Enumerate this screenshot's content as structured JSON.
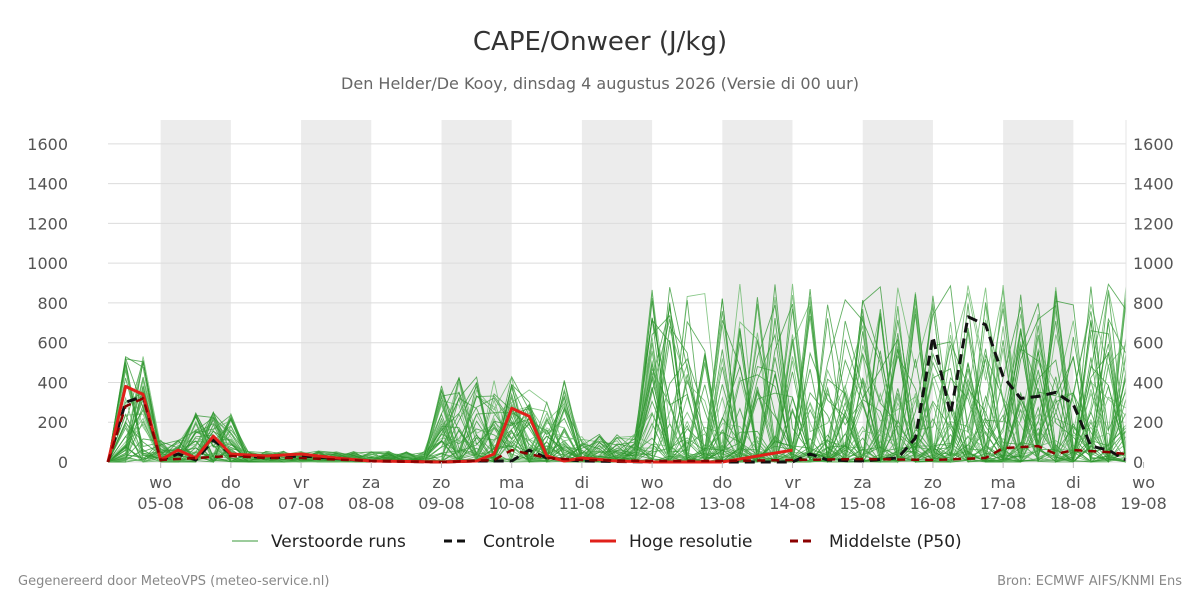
{
  "page": {
    "title": "CAPE/Onweer (J/kg)",
    "subtitle": "Den Helder/De Kooy, dinsdag  4 augustus 2026 (Versie di 00 uur)",
    "footer_left": "Gegenereerd door MeteoVPS (meteo-service.nl)",
    "footer_right": "Bron: ECMWF AIFS/KNMI Ens"
  },
  "chart_data": {
    "type": "line",
    "title": "CAPE/Onweer (J/kg)",
    "ylim": [
      0,
      1720
    ],
    "yticks": [
      0,
      200,
      400,
      600,
      800,
      1000,
      1200,
      1400,
      1600
    ],
    "xlim": [
      -0.75,
      13.75
    ],
    "x_unit": "days relative to 05-08 00:00",
    "xticks": [
      {
        "day": "wo",
        "date": "05-08"
      },
      {
        "day": "do",
        "date": "06-08"
      },
      {
        "day": "vr",
        "date": "07-08"
      },
      {
        "day": "za",
        "date": "08-08"
      },
      {
        "day": "zo",
        "date": "09-08"
      },
      {
        "day": "ma",
        "date": "10-08"
      },
      {
        "day": "di",
        "date": "11-08"
      },
      {
        "day": "wo",
        "date": "12-08"
      },
      {
        "day": "do",
        "date": "13-08"
      },
      {
        "day": "vr",
        "date": "14-08"
      },
      {
        "day": "za",
        "date": "15-08"
      },
      {
        "day": "zo",
        "date": "16-08"
      },
      {
        "day": "ma",
        "date": "17-08"
      },
      {
        "day": "di",
        "date": "18-08"
      },
      {
        "day": "wo",
        "date": "19-08"
      }
    ],
    "shaded_days": [
      0,
      2,
      4,
      6,
      8,
      10,
      12
    ],
    "grid": true,
    "legend": [
      {
        "label": "Verstoorde runs",
        "color": "#3a9a3a",
        "style": "thin"
      },
      {
        "label": "Controle",
        "color": "#111111",
        "style": "dashed"
      },
      {
        "label": "Hoge resolutie",
        "color": "#e0201a",
        "style": "solid"
      },
      {
        "label": "Middelste (P50)",
        "color": "#8b0000",
        "style": "dashed"
      }
    ],
    "series": [
      {
        "name": "Controle",
        "color": "#111111",
        "x": [
          -0.75,
          -0.5,
          -0.25,
          0,
          0.25,
          0.5,
          0.75,
          1,
          1.5,
          2,
          3,
          4,
          4.5,
          5,
          5.25,
          5.5,
          6,
          7,
          8,
          9,
          9.25,
          9.5,
          10,
          10.5,
          10.75,
          11,
          11.25,
          11.5,
          11.75,
          12,
          12.25,
          12.5,
          12.75,
          13,
          13.25,
          13.5,
          13.75
        ],
        "y": [
          0,
          300,
          330,
          10,
          40,
          10,
          110,
          40,
          20,
          30,
          5,
          0,
          5,
          5,
          60,
          20,
          5,
          0,
          0,
          0,
          40,
          10,
          5,
          20,
          120,
          630,
          240,
          730,
          690,
          430,
          320,
          330,
          350,
          290,
          80,
          60,
          10
        ]
      },
      {
        "name": "Hoge resolutie",
        "color": "#e0201a",
        "x": [
          -0.75,
          -0.5,
          -0.25,
          0,
          0.25,
          0.5,
          0.75,
          1,
          1.5,
          2,
          2.5,
          3,
          4,
          4.5,
          4.75,
          5,
          5.25,
          5.5,
          5.75,
          6,
          6.5,
          7,
          8,
          9
        ],
        "y": [
          0,
          380,
          340,
          10,
          60,
          20,
          130,
          40,
          30,
          40,
          20,
          5,
          0,
          5,
          40,
          270,
          230,
          30,
          5,
          20,
          5,
          0,
          0,
          60
        ]
      },
      {
        "name": "Middelste (P50)",
        "color": "#8b0000",
        "x": [
          -0.75,
          -0.5,
          -0.25,
          0,
          0.5,
          1,
          1.5,
          2,
          3,
          4,
          4.75,
          5,
          5.5,
          6,
          7,
          8,
          9,
          10,
          11,
          11.75,
          12,
          12.5,
          12.75,
          13,
          13.5,
          13.75
        ],
        "y": [
          0,
          280,
          320,
          10,
          20,
          30,
          20,
          20,
          5,
          0,
          10,
          60,
          20,
          10,
          5,
          5,
          10,
          15,
          10,
          20,
          70,
          80,
          40,
          60,
          50,
          40
        ]
      }
    ]
  }
}
